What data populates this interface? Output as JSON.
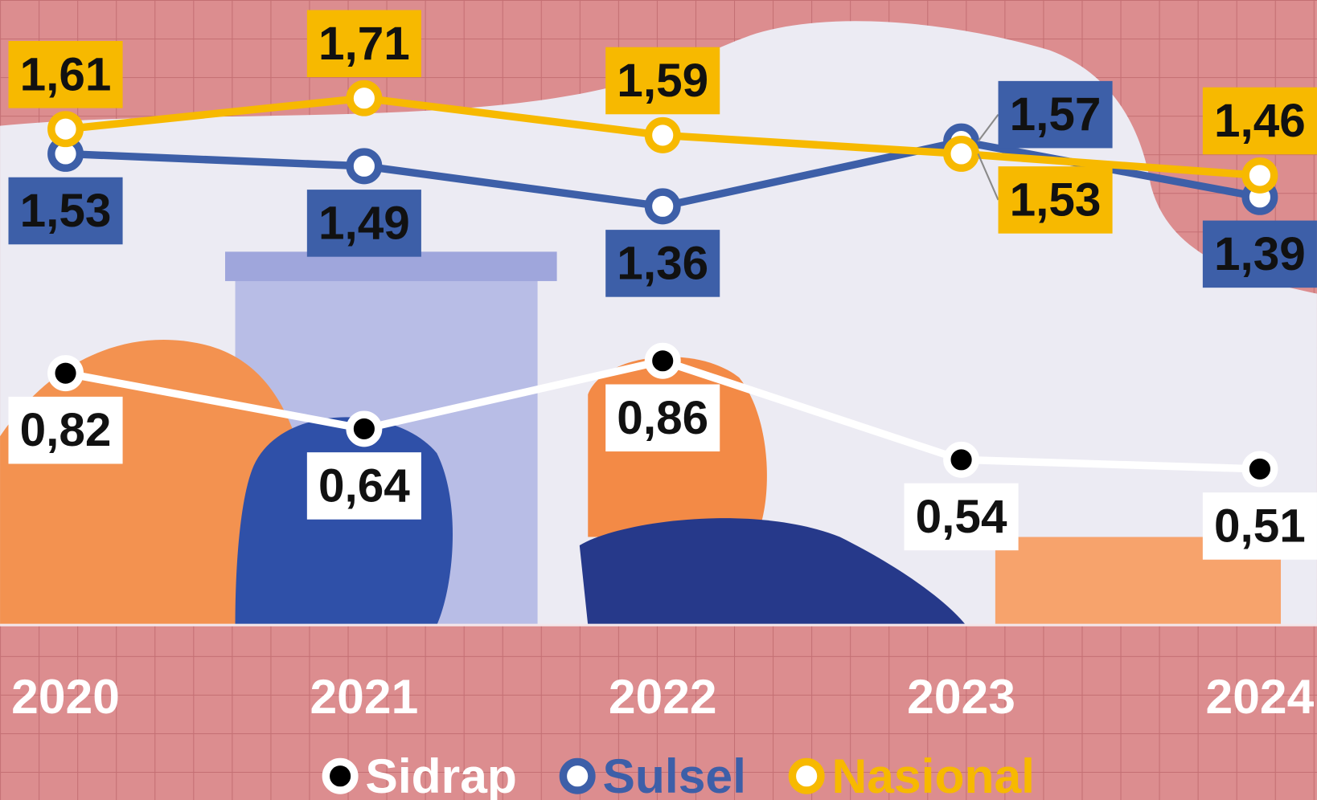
{
  "chart_data": {
    "type": "line",
    "categories": [
      "2020",
      "2021",
      "2022",
      "2023",
      "2024"
    ],
    "series": [
      {
        "name": "Sidrap",
        "color": "#ffffff",
        "values": [
          0.82,
          0.64,
          0.86,
          0.54,
          0.51
        ],
        "value_labels": [
          "0,82",
          "0,64",
          "0,86",
          "0,54",
          "0,51"
        ]
      },
      {
        "name": "Sulsel",
        "color": "#3d5fa8",
        "values": [
          1.53,
          1.49,
          1.36,
          1.57,
          1.39
        ],
        "value_labels": [
          "1,53",
          "1,49",
          "1,36",
          "1,57",
          "1,39"
        ]
      },
      {
        "name": "Nasional",
        "color": "#f7b900",
        "values": [
          1.61,
          1.71,
          1.59,
          1.53,
          1.46
        ],
        "value_labels": [
          "1,61",
          "1,71",
          "1,59",
          "1,53",
          "1,46"
        ]
      }
    ]
  }
}
